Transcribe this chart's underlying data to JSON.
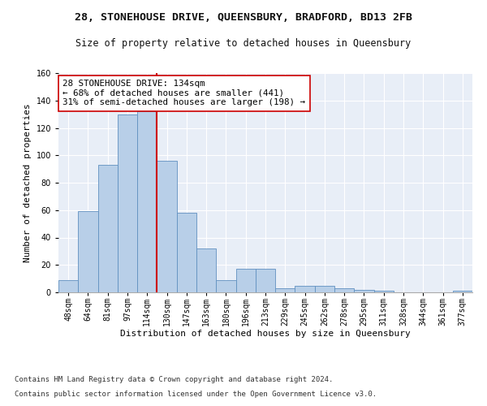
{
  "title1": "28, STONEHOUSE DRIVE, QUEENSBURY, BRADFORD, BD13 2FB",
  "title2": "Size of property relative to detached houses in Queensbury",
  "xlabel": "Distribution of detached houses by size in Queensbury",
  "ylabel": "Number of detached properties",
  "categories": [
    "48sqm",
    "64sqm",
    "81sqm",
    "97sqm",
    "114sqm",
    "130sqm",
    "147sqm",
    "163sqm",
    "180sqm",
    "196sqm",
    "213sqm",
    "229sqm",
    "245sqm",
    "262sqm",
    "278sqm",
    "295sqm",
    "311sqm",
    "328sqm",
    "344sqm",
    "361sqm",
    "377sqm"
  ],
  "values": [
    9,
    59,
    93,
    130,
    132,
    96,
    58,
    32,
    9,
    17,
    17,
    3,
    5,
    5,
    3,
    2,
    1,
    0,
    0,
    0,
    1
  ],
  "bar_color": "#b8cfe8",
  "bar_edge_color": "#6090c0",
  "vline_x_index": 5,
  "vline_color": "#cc0000",
  "annotation_text": "28 STONEHOUSE DRIVE: 134sqm\n← 68% of detached houses are smaller (441)\n31% of semi-detached houses are larger (198) →",
  "annotation_box_color": "#ffffff",
  "annotation_box_edge_color": "#cc0000",
  "ylim": [
    0,
    160
  ],
  "yticks": [
    0,
    20,
    40,
    60,
    80,
    100,
    120,
    140,
    160
  ],
  "footnote1": "Contains HM Land Registry data © Crown copyright and database right 2024.",
  "footnote2": "Contains public sector information licensed under the Open Government Licence v3.0.",
  "bg_color": "#e8eef7",
  "fig_bg_color": "#ffffff",
  "title1_fontsize": 9.5,
  "title2_fontsize": 8.5,
  "annotation_fontsize": 7.8,
  "footnote_fontsize": 6.5,
  "ylabel_fontsize": 8,
  "xlabel_fontsize": 8,
  "tick_fontsize": 7
}
